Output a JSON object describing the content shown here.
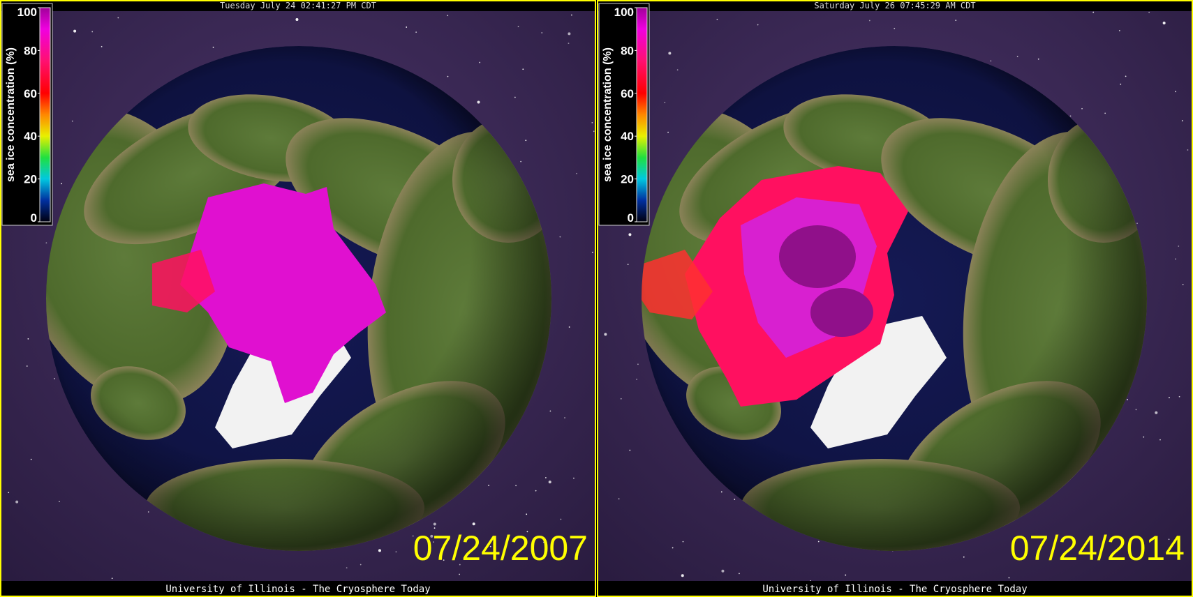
{
  "panels": [
    {
      "timestamp": "Tuesday July 24 02:41:27 PM CDT",
      "colorbar": {
        "label": "sea ice concentration (%)",
        "lim": [
          0,
          100
        ],
        "ticks": [
          100,
          80,
          60,
          40,
          20,
          0
        ]
      },
      "date": "07/24/2007",
      "footer": "University of Illinois - The Cryosphere Today"
    },
    {
      "timestamp": "Saturday July 26 07:45:29 AM CDT",
      "colorbar": {
        "label": "sea ice concentration (%)",
        "lim": [
          0,
          100
        ],
        "ticks": [
          100,
          80,
          60,
          40,
          20,
          0
        ]
      },
      "date": "07/24/2014",
      "footer": "University of Illinois - The Cryosphere Today"
    }
  ]
}
